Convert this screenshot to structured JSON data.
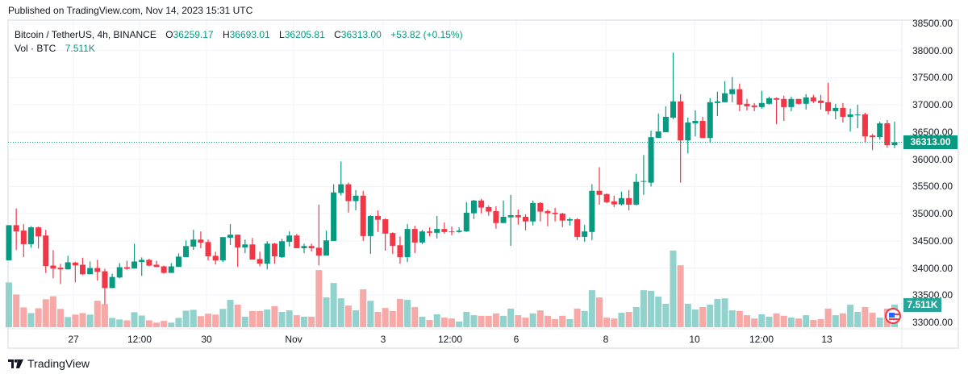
{
  "header": {
    "published": "Published on TradingView.com, Nov 14, 2023 15:31 UTC"
  },
  "legend": {
    "symbol": "Bitcoin / TetherUS, 4h, BINANCE",
    "open_label": "O",
    "open": "36259.17",
    "high_label": "H",
    "high": "36693.01",
    "low_label": "L",
    "low": "36205.81",
    "close_label": "C",
    "close": "36313.00",
    "change": "+53.82 (+0.15%)",
    "vol_label": "Vol · BTC",
    "vol_value": "7.511K"
  },
  "price_axis": {
    "labels": [
      "38500.00",
      "38000.00",
      "37500.00",
      "37000.00",
      "36500.00",
      "36000.00",
      "35500.00",
      "35000.00",
      "34500.00",
      "34000.00",
      "33500.00",
      "33000.00"
    ],
    "last_price": "36313.00",
    "last_volume": "7.511K"
  },
  "time_axis": {
    "labels": [
      "27",
      "12:00",
      "30",
      "Nov",
      "3",
      "12:00",
      "6",
      "8",
      "10",
      "12:00",
      "13"
    ]
  },
  "footer": {
    "brand": "TradingView"
  },
  "colors": {
    "up": "#089981",
    "down": "#f23645",
    "vol_up": "#92d2cc",
    "vol_down": "#f7a9a7",
    "grid": "#f0f3fa"
  },
  "icons": {
    "event_flag": "us-flag-icon",
    "logo": "tradingview-logo-icon"
  },
  "chart_data": {
    "type": "candlestick",
    "title": "Bitcoin / TetherUS, 4h, BINANCE",
    "interval": "4h",
    "ylim": [
      33000,
      38500
    ],
    "volume_unit": "K BTC",
    "grid": true,
    "fields": [
      "open",
      "high",
      "low",
      "close",
      "volume"
    ],
    "candles": [
      [
        34140,
        34788,
        34140,
        34788,
        14.9
      ],
      [
        34788,
        35096,
        34334,
        34673,
        10.9
      ],
      [
        34688,
        34807,
        34200,
        34439,
        6.6
      ],
      [
        34439,
        34772,
        34374,
        34748,
        4.7
      ],
      [
        34748,
        34763,
        34359,
        34583,
        6.3
      ],
      [
        34598,
        34703,
        33910,
        34035,
        9.3
      ],
      [
        34045,
        34329,
        33811,
        33990,
        10.3
      ],
      [
        34005,
        34075,
        33706,
        33975,
        6.1
      ],
      [
        33975,
        34224,
        33975,
        34105,
        3.4
      ],
      [
        34100,
        34115,
        33736,
        34050,
        4.2
      ],
      [
        34060,
        34189,
        33870,
        33885,
        4.7
      ],
      [
        33885,
        34120,
        33885,
        34000,
        4.2
      ],
      [
        34000,
        34150,
        33766,
        33930,
        8.8
      ],
      [
        33940,
        33985,
        33332,
        33631,
        7.7
      ],
      [
        33631,
        33895,
        33631,
        33836,
        3.1
      ],
      [
        33826,
        34090,
        33811,
        34015,
        2.6
      ],
      [
        34015,
        34135,
        33970,
        33985,
        2.3
      ],
      [
        33990,
        34449,
        33990,
        34120,
        5.0
      ],
      [
        34110,
        34195,
        33856,
        34150,
        3.9
      ],
      [
        34150,
        34170,
        34030,
        34045,
        2.3
      ],
      [
        34060,
        34135,
        34020,
        34020,
        1.5
      ],
      [
        34030,
        34045,
        33895,
        33910,
        2.1
      ],
      [
        33910,
        34090,
        33910,
        34030,
        1.5
      ],
      [
        34020,
        34270,
        34020,
        34210,
        3.1
      ],
      [
        34200,
        34508,
        34200,
        34404,
        5.5
      ],
      [
        34394,
        34703,
        34334,
        34523,
        5.8
      ],
      [
        34523,
        34673,
        34364,
        34468,
        3.7
      ],
      [
        34478,
        34523,
        34140,
        34214,
        4.5
      ],
      [
        34224,
        34299,
        34065,
        34140,
        4.2
      ],
      [
        34140,
        34568,
        34110,
        34568,
        6.1
      ],
      [
        34558,
        34807,
        34424,
        34613,
        9.1
      ],
      [
        34613,
        34613,
        34020,
        34379,
        7.5
      ],
      [
        34379,
        34523,
        34274,
        34434,
        3.5
      ],
      [
        34434,
        34553,
        34155,
        34155,
        5.4
      ],
      [
        34165,
        34299,
        34030,
        34080,
        5.4
      ],
      [
        34080,
        34493,
        33975,
        34449,
        5.9
      ],
      [
        34449,
        34463,
        34080,
        34214,
        7.0
      ],
      [
        34200,
        34538,
        34185,
        34493,
        5.1
      ],
      [
        34483,
        34673,
        34394,
        34598,
        5.6
      ],
      [
        34598,
        34628,
        34364,
        34364,
        4.0
      ],
      [
        34364,
        34449,
        34274,
        34404,
        3.5
      ],
      [
        34404,
        34449,
        34304,
        34364,
        3.5
      ],
      [
        34374,
        35166,
        34050,
        34229,
        19.0
      ],
      [
        34229,
        34688,
        34229,
        34508,
        9.9
      ],
      [
        34498,
        35540,
        34498,
        35390,
        14.7
      ],
      [
        35380,
        35958,
        35335,
        35540,
        9.6
      ],
      [
        35540,
        35570,
        35022,
        35231,
        7.2
      ],
      [
        35231,
        35435,
        35062,
        35331,
        5.6
      ],
      [
        35331,
        35420,
        34498,
        34588,
        12.6
      ],
      [
        34588,
        34972,
        34259,
        34957,
        8.8
      ],
      [
        34957,
        35062,
        34663,
        34887,
        5.1
      ],
      [
        34897,
        34912,
        34319,
        34633,
        6.4
      ],
      [
        34643,
        34658,
        34259,
        34409,
        5.4
      ],
      [
        34419,
        34583,
        34080,
        34200,
        9.4
      ],
      [
        34200,
        34807,
        34110,
        34718,
        9.1
      ],
      [
        34718,
        34777,
        34274,
        34469,
        6.7
      ],
      [
        34469,
        34703,
        34439,
        34673,
        3.5
      ],
      [
        34673,
        34748,
        34588,
        34648,
        2.4
      ],
      [
        34648,
        34957,
        34543,
        34718,
        4.3
      ],
      [
        34718,
        34837,
        34633,
        34663,
        3.2
      ],
      [
        34673,
        34763,
        34603,
        34663,
        2.9
      ],
      [
        34663,
        34748,
        34648,
        34688,
        1.9
      ],
      [
        34673,
        35211,
        34663,
        35017,
        5.1
      ],
      [
        35007,
        35256,
        34902,
        35241,
        4.0
      ],
      [
        35241,
        35271,
        35007,
        35111,
        3.8
      ],
      [
        35121,
        35151,
        34962,
        35037,
        3.8
      ],
      [
        35047,
        35136,
        34723,
        34827,
        4.6
      ],
      [
        34827,
        35241,
        34827,
        34942,
        3.8
      ],
      [
        34932,
        35346,
        34409,
        34972,
        6.2
      ],
      [
        34972,
        35076,
        34797,
        34932,
        4.0
      ],
      [
        34942,
        34987,
        34693,
        34857,
        3.2
      ],
      [
        34857,
        35241,
        34783,
        35196,
        4.6
      ],
      [
        35196,
        35211,
        34857,
        35037,
        5.6
      ],
      [
        35047,
        35076,
        34768,
        35007,
        3.8
      ],
      [
        35017,
        35106,
        34857,
        34992,
        2.7
      ],
      [
        35002,
        35017,
        34753,
        34872,
        3.8
      ],
      [
        34872,
        34927,
        34783,
        34897,
        2.7
      ],
      [
        34897,
        34917,
        34514,
        34573,
        6.2
      ],
      [
        34573,
        34792,
        34484,
        34673,
        5.4
      ],
      [
        34663,
        35540,
        34514,
        35420,
        12.3
      ],
      [
        35420,
        35854,
        35166,
        35346,
        9.9
      ],
      [
        35360,
        35370,
        35196,
        35211,
        3.2
      ],
      [
        35226,
        35331,
        35121,
        35171,
        2.9
      ],
      [
        35171,
        35405,
        35151,
        35286,
        4.8
      ],
      [
        35286,
        35435,
        35062,
        35166,
        5.1
      ],
      [
        35166,
        35734,
        35151,
        35585,
        6.7
      ],
      [
        35585,
        36078,
        35346,
        35600,
        12.3
      ],
      [
        35570,
        36526,
        35500,
        36407,
        12.1
      ],
      [
        36392,
        36840,
        36392,
        36511,
        10.2
      ],
      [
        36497,
        36975,
        36497,
        36781,
        7.8
      ],
      [
        36766,
        37962,
        36736,
        37065,
        25.5
      ],
      [
        37065,
        37199,
        35570,
        36347,
        20.6
      ],
      [
        36347,
        36766,
        36108,
        36676,
        7.8
      ],
      [
        36661,
        36900,
        36422,
        36706,
        5.9
      ],
      [
        36706,
        36781,
        36392,
        36392,
        6.7
      ],
      [
        36392,
        37124,
        36302,
        37050,
        7.5
      ],
      [
        37035,
        37244,
        36796,
        37065,
        9.4
      ],
      [
        37050,
        37438,
        37050,
        37214,
        9.6
      ],
      [
        37199,
        37513,
        37050,
        37289,
        5.6
      ],
      [
        37289,
        37393,
        36885,
        37005,
        5.4
      ],
      [
        37020,
        37110,
        36900,
        36975,
        4.0
      ],
      [
        36990,
        37035,
        36885,
        36960,
        2.9
      ],
      [
        36960,
        37259,
        36930,
        37035,
        4.3
      ],
      [
        37020,
        37154,
        37005,
        37124,
        3.5
      ],
      [
        37124,
        37139,
        36646,
        37095,
        4.6
      ],
      [
        37110,
        37169,
        36706,
        36960,
        3.8
      ],
      [
        36960,
        37154,
        36885,
        37110,
        3.2
      ],
      [
        37110,
        37110,
        37005,
        37020,
        2.9
      ],
      [
        37020,
        37199,
        36915,
        37139,
        4.0
      ],
      [
        37139,
        37184,
        37035,
        37065,
        2.4
      ],
      [
        37080,
        37184,
        36915,
        37035,
        2.7
      ],
      [
        37050,
        37408,
        36826,
        36885,
        6.2
      ],
      [
        36885,
        37020,
        36736,
        36945,
        4.0
      ],
      [
        36945,
        37035,
        36676,
        36781,
        4.6
      ],
      [
        36781,
        36930,
        36511,
        36826,
        7.5
      ],
      [
        36820,
        37005,
        36571,
        36826,
        5.1
      ],
      [
        36826,
        36855,
        36302,
        36422,
        6.7
      ],
      [
        36437,
        36467,
        36168,
        36407,
        4.8
      ],
      [
        36407,
        36691,
        36362,
        36661,
        3.2
      ],
      [
        36661,
        36721,
        36213,
        36259,
        6.2
      ],
      [
        36259.17,
        36693.01,
        36205.81,
        36313.0,
        7.511
      ]
    ]
  }
}
